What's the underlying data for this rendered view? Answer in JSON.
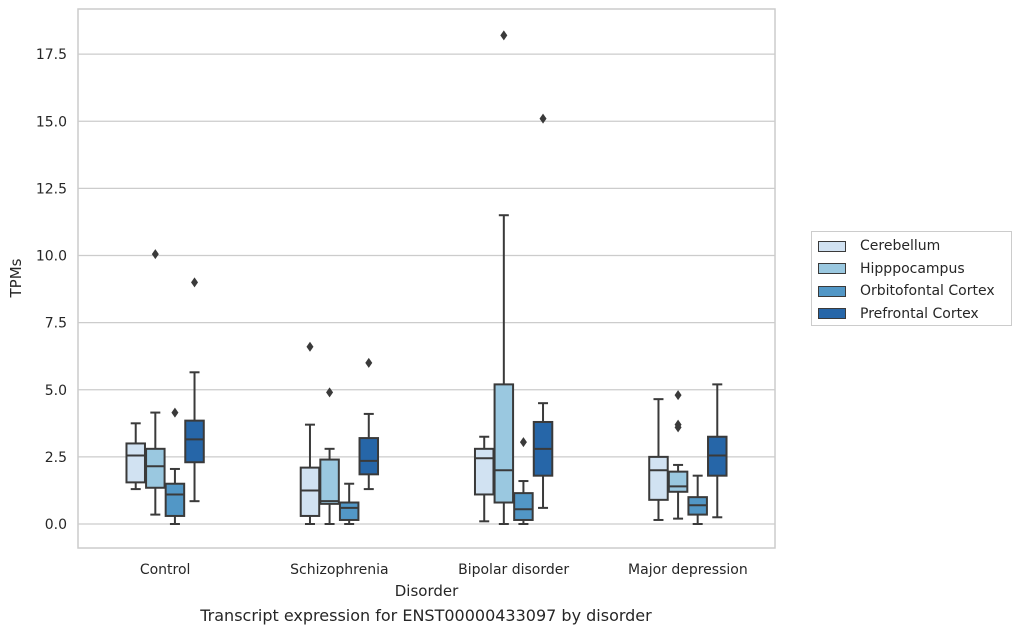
{
  "chart_data": {
    "type": "box",
    "title": "Transcript expression for ENST00000433097 by disorder",
    "xlabel": "Disorder",
    "ylabel": "TPMs",
    "ylim": [
      -0.9,
      19.1
    ],
    "yticks": [
      "0.0",
      "2.5",
      "5.0",
      "7.5",
      "10.0",
      "12.5",
      "15.0",
      "17.5"
    ],
    "ytick_values": [
      0,
      2.5,
      5,
      7.5,
      10,
      12.5,
      15,
      17.5
    ],
    "grid": true,
    "legend_position": "right",
    "categories": [
      "Control",
      "Schizophrenia",
      "Bipolar disorder",
      "Major depression"
    ],
    "series": [
      {
        "name": "Cerebellum",
        "color": "#d1e2f2",
        "boxes": [
          {
            "whislo": 1.3,
            "q1": 1.55,
            "med": 2.55,
            "q3": 3.0,
            "whishi": 3.75,
            "fliers": []
          },
          {
            "whislo": 0.0,
            "q1": 0.3,
            "med": 1.25,
            "q3": 2.1,
            "whishi": 3.7,
            "fliers": [
              6.6
            ]
          },
          {
            "whislo": 0.1,
            "q1": 1.1,
            "med": 2.45,
            "q3": 2.8,
            "whishi": 3.25,
            "fliers": []
          },
          {
            "whislo": 0.15,
            "q1": 0.9,
            "med": 2.0,
            "q3": 2.5,
            "whishi": 4.65,
            "fliers": []
          }
        ]
      },
      {
        "name": "Hipppocampus",
        "color": "#9ac8e0",
        "boxes": [
          {
            "whislo": 0.35,
            "q1": 1.35,
            "med": 2.15,
            "q3": 2.8,
            "whishi": 4.15,
            "fliers": [
              10.05
            ]
          },
          {
            "whislo": 0.0,
            "q1": 0.75,
            "med": 0.85,
            "q3": 2.4,
            "whishi": 2.8,
            "fliers": [
              4.9
            ]
          },
          {
            "whislo": 0.0,
            "q1": 0.8,
            "med": 2.0,
            "q3": 5.2,
            "whishi": 11.5,
            "fliers": [
              18.2
            ]
          },
          {
            "whislo": 0.2,
            "q1": 1.2,
            "med": 1.4,
            "q3": 1.95,
            "whishi": 2.2,
            "fliers": [
              4.8,
              3.7,
              3.6
            ]
          }
        ]
      },
      {
        "name": "Orbitofontal Cortex",
        "color": "#5297c6",
        "boxes": [
          {
            "whislo": 0.0,
            "q1": 0.3,
            "med": 1.1,
            "q3": 1.5,
            "whishi": 2.05,
            "fliers": [
              4.15
            ]
          },
          {
            "whislo": 0.0,
            "q1": 0.15,
            "med": 0.6,
            "q3": 0.8,
            "whishi": 1.5,
            "fliers": []
          },
          {
            "whislo": 0.0,
            "q1": 0.15,
            "med": 0.55,
            "q3": 1.15,
            "whishi": 1.6,
            "fliers": [
              3.05
            ]
          },
          {
            "whislo": 0.0,
            "q1": 0.35,
            "med": 0.7,
            "q3": 1.0,
            "whishi": 1.8,
            "fliers": []
          }
        ]
      },
      {
        "name": "Prefrontal Cortex",
        "color": "#2666a8",
        "boxes": [
          {
            "whislo": 0.85,
            "q1": 2.3,
            "med": 3.15,
            "q3": 3.85,
            "whishi": 5.65,
            "fliers": [
              9.0
            ]
          },
          {
            "whislo": 1.3,
            "q1": 1.85,
            "med": 2.35,
            "q3": 3.2,
            "whishi": 4.1,
            "fliers": [
              6.0
            ]
          },
          {
            "whislo": 0.6,
            "q1": 1.8,
            "med": 2.8,
            "q3": 3.8,
            "whishi": 4.5,
            "fliers": [
              15.1
            ]
          },
          {
            "whislo": 0.25,
            "q1": 1.8,
            "med": 2.55,
            "q3": 3.25,
            "whishi": 5.2,
            "fliers": []
          }
        ]
      }
    ]
  }
}
